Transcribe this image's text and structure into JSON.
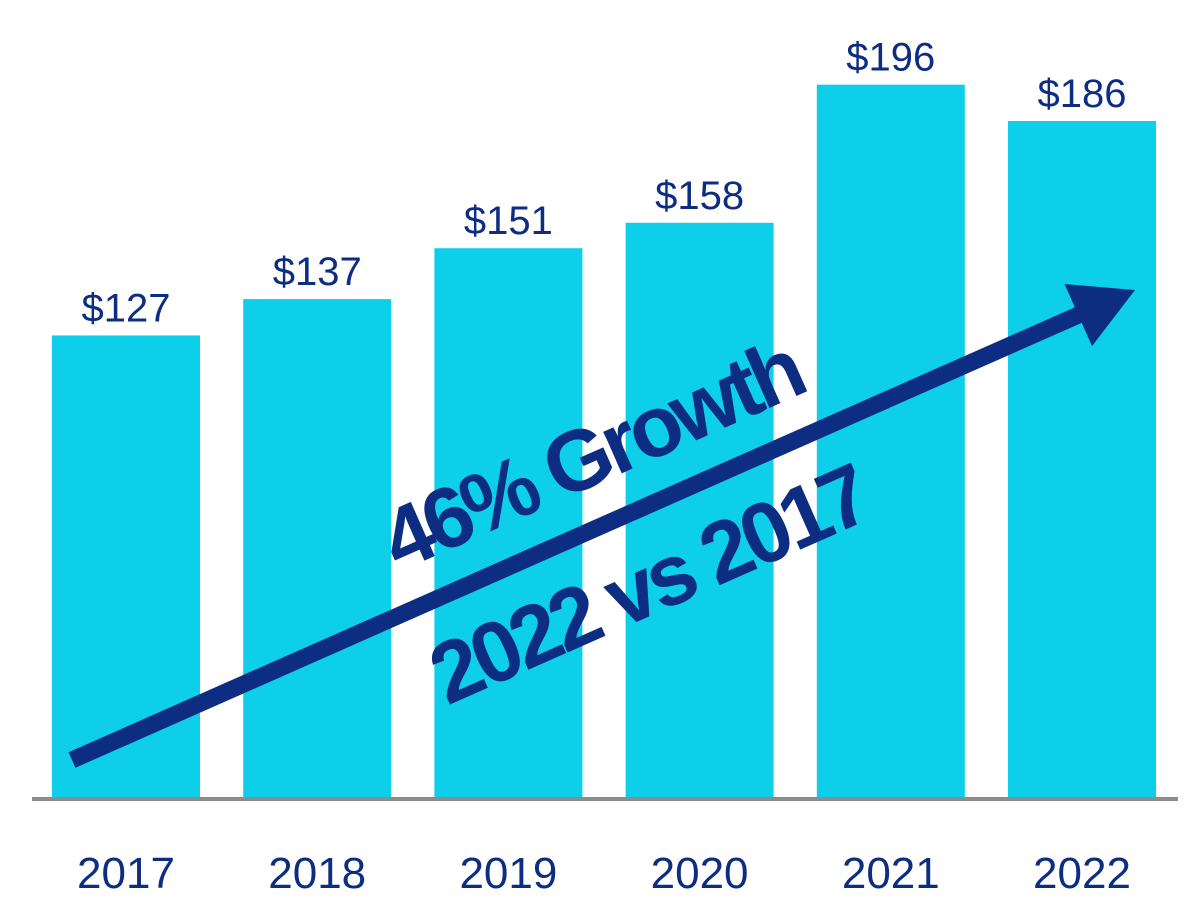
{
  "chart_data": {
    "type": "bar",
    "categories": [
      "2017",
      "2018",
      "2019",
      "2020",
      "2021",
      "2022"
    ],
    "values": [
      127,
      137,
      151,
      158,
      196,
      186
    ],
    "value_labels": [
      "$127",
      "$137",
      "$151",
      "$158",
      "$196",
      "$186"
    ],
    "title": "",
    "xlabel": "",
    "ylabel": "",
    "ylim": [
      0,
      216
    ],
    "grid": false,
    "legend": "none",
    "annotations": {
      "line1": "46% Growth",
      "line2": "2022 vs 2017",
      "arrow": "up-right"
    }
  },
  "colors": {
    "bar": "#0dcfea",
    "text": "#0d2d82",
    "arrow": "#0d2d82",
    "axis": "#8c8c8c"
  }
}
